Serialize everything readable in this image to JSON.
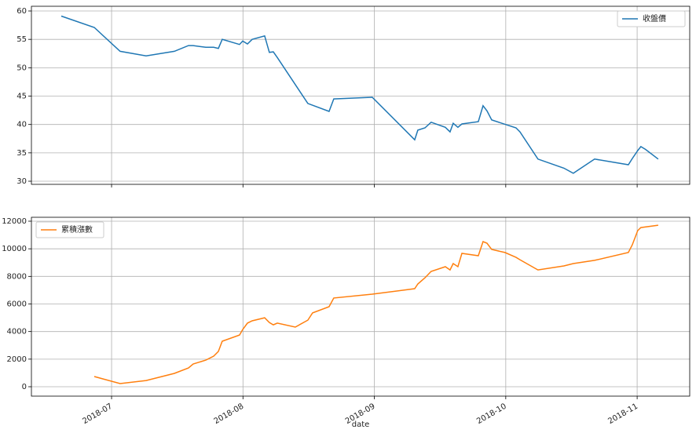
{
  "chart_data": [
    {
      "type": "line",
      "grid": true,
      "legend": "upper right",
      "x": [
        6.617,
        6.868,
        7.065,
        7.263,
        7.478,
        7.585,
        7.621,
        7.717,
        7.777,
        7.813,
        7.842,
        7.974,
        7.998,
        8.034,
        8.07,
        8.165,
        8.201,
        8.231,
        8.261,
        8.494,
        8.655,
        8.691,
        8.984,
        9.307,
        9.331,
        9.385,
        9.432,
        9.54,
        9.576,
        9.6,
        9.636,
        9.666,
        9.791,
        9.827,
        9.857,
        9.893,
        10.078,
        10.108,
        10.245,
        10.443,
        10.514,
        10.676,
        10.933,
        10.963,
        11.004,
        11.028,
        11.064,
        11.16
      ],
      "series": [
        {
          "name": "收盤價",
          "color": "#1f77b4",
          "values": [
            59.1,
            57.1,
            52.9,
            52.1,
            52.9,
            53.9,
            53.9,
            53.6,
            53.6,
            53.4,
            55.0,
            54.1,
            54.7,
            54.2,
            55.0,
            55.6,
            52.7,
            52.8,
            51.8,
            43.7,
            42.3,
            44.5,
            44.8,
            37.3,
            39.0,
            39.4,
            40.4,
            39.5,
            38.7,
            40.2,
            39.5,
            40.1,
            40.5,
            43.3,
            42.4,
            40.8,
            39.4,
            38.7,
            33.9,
            32.3,
            31.4,
            33.9,
            32.9,
            34.0,
            35.4,
            36.1,
            35.6,
            33.9
          ]
        }
      ],
      "xlim": [
        6.39,
        11.4
      ],
      "xticks": [
        7,
        8,
        9,
        10,
        11
      ],
      "ylim": [
        29.45,
        60.83
      ],
      "yticks": [
        30,
        35,
        40,
        45,
        50,
        55,
        60
      ]
    },
    {
      "type": "line",
      "grid": true,
      "legend": "upper left",
      "xlabel": "date",
      "x": [
        6.868,
        7.065,
        7.263,
        7.478,
        7.585,
        7.621,
        7.717,
        7.777,
        7.813,
        7.842,
        7.974,
        7.998,
        8.034,
        8.07,
        8.165,
        8.201,
        8.231,
        8.261,
        8.398,
        8.494,
        8.53,
        8.655,
        8.691,
        8.984,
        9.307,
        9.331,
        9.385,
        9.432,
        9.54,
        9.576,
        9.6,
        9.636,
        9.666,
        9.791,
        9.827,
        9.857,
        9.893,
        9.994,
        10.078,
        10.108,
        10.245,
        10.443,
        10.514,
        10.676,
        10.933,
        10.963,
        11.004,
        11.028,
        11.16
      ],
      "series": [
        {
          "name": "累積漲數",
          "color": "#ff7f0e",
          "values": [
            740,
            230,
            450,
            970,
            1360,
            1650,
            1930,
            2220,
            2560,
            3300,
            3750,
            4150,
            4610,
            4780,
            5000,
            4660,
            4490,
            4610,
            4320,
            4830,
            5350,
            5800,
            6430,
            6710,
            7110,
            7450,
            7900,
            8360,
            8700,
            8470,
            8930,
            8700,
            9670,
            9500,
            10520,
            10410,
            9950,
            9730,
            9380,
            9210,
            8470,
            8760,
            8930,
            9160,
            9730,
            10290,
            11320,
            11540,
            11710
          ]
        }
      ],
      "xlim": [
        6.39,
        11.4
      ],
      "xticks": [
        {
          "value": 7,
          "label": "2018-07"
        },
        {
          "value": 8,
          "label": "2018-08"
        },
        {
          "value": 9,
          "label": "2018-09"
        },
        {
          "value": 10,
          "label": "2018-10"
        },
        {
          "value": 11,
          "label": "2018-11"
        }
      ],
      "ylim": [
        -682,
        12284
      ],
      "yticks": [
        0,
        2000,
        4000,
        6000,
        8000,
        10000,
        12000
      ]
    }
  ]
}
